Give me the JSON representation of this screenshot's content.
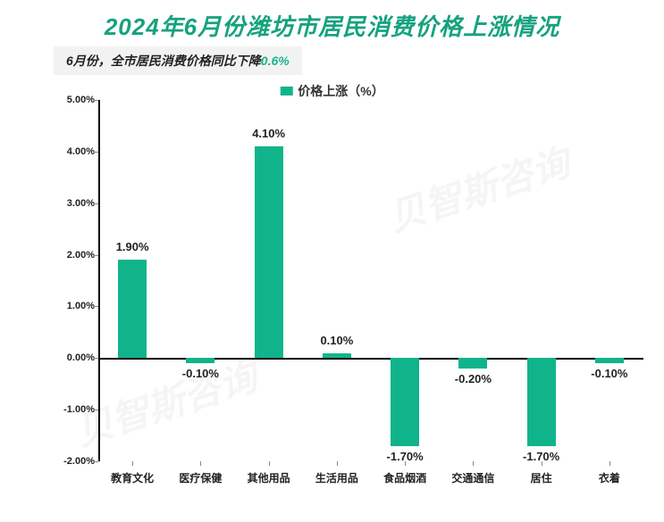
{
  "title": {
    "text": "2024年6月份潍坊市居民消费价格上涨情况",
    "color": "#15a27f",
    "fontsize": 26
  },
  "subtitle": {
    "prefix": "6月份，全市居民消费价格同比下降",
    "highlight": "0.6%",
    "bg_color": "#f2f2f3",
    "prefix_color": "#222222",
    "highlight_color": "#18b58c",
    "fontsize": 14
  },
  "legend": {
    "label": "价格上涨（%）",
    "color": "#11b48a",
    "fontsize": 14
  },
  "chart": {
    "type": "bar",
    "background_color": "#ffffff",
    "categories": [
      "教育文化",
      "医疗保健",
      "其他用品",
      "生活用品",
      "食品烟酒",
      "交通通信",
      "居住",
      "衣着"
    ],
    "values": [
      1.9,
      -0.1,
      4.1,
      0.1,
      -1.7,
      -0.2,
      -1.7,
      -0.1
    ],
    "value_labels": [
      "1.90%",
      "-0.10%",
      "4.10%",
      "0.10%",
      "-1.70%",
      "-0.20%",
      "-1.70%",
      "-0.10%"
    ],
    "bar_color": "#11b48a",
    "bar_width": 0.42,
    "ylim": [
      -2.0,
      5.0
    ],
    "ytick_step": 1.0,
    "ytick_labels": [
      "-2.00%",
      "-1.00%",
      "0.00%",
      "1.00%",
      "2.00%",
      "3.00%",
      "4.00%",
      "5.00%"
    ],
    "axis_color": "#000000",
    "tick_font_color": "#222222",
    "ytick_fontsize": 11,
    "xtick_fontsize": 12,
    "value_label_fontsize": 13,
    "value_label_color": "#222222"
  },
  "watermark": {
    "text": "贝智斯咨询",
    "fontsize": 42
  }
}
